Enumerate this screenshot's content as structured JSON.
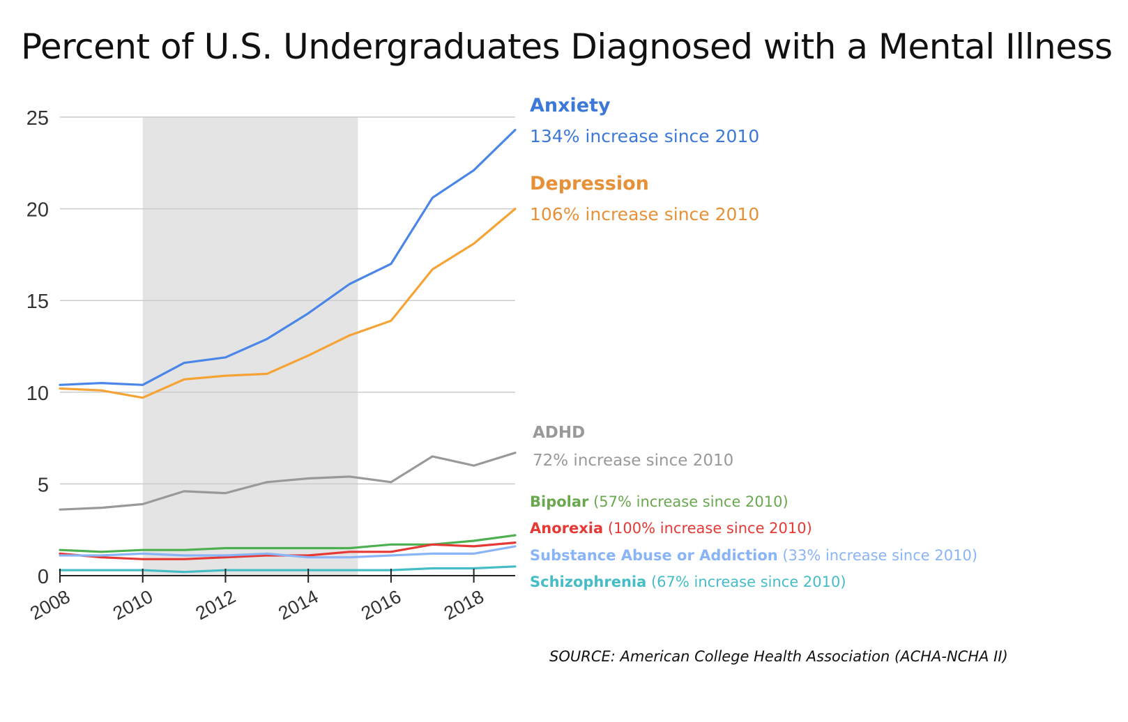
{
  "chart_data": {
    "type": "line",
    "title": "Percent of U.S. Undergraduates Diagnosed with a Mental Illness",
    "xlabel": "",
    "ylabel": "",
    "xlim": [
      2008,
      2019
    ],
    "ylim": [
      0,
      25
    ],
    "yticks": [
      0,
      5,
      10,
      15,
      20,
      25
    ],
    "xticks": [
      2008,
      2010,
      2012,
      2014,
      2016,
      2018
    ],
    "shaded_range": [
      2010,
      2015.2
    ],
    "grid": true,
    "x": [
      2008,
      2009,
      2010,
      2011,
      2012,
      2013,
      2014,
      2015,
      2016,
      2017,
      2018,
      2019
    ],
    "series": [
      {
        "name": "Anxiety",
        "color": "#4a86e8",
        "label_color": "#3c78d8",
        "note": "134% increase since 2010",
        "values": [
          10.4,
          10.5,
          10.4,
          11.6,
          11.9,
          12.9,
          14.3,
          15.9,
          17.0,
          20.6,
          22.1,
          24.3
        ]
      },
      {
        "name": "Depression",
        "color": "#f6a336",
        "label_color": "#e69138",
        "note": "106% increase since 2010",
        "values": [
          10.2,
          10.1,
          9.7,
          10.7,
          10.9,
          11.0,
          12.0,
          13.1,
          13.9,
          16.7,
          18.1,
          20.0
        ]
      },
      {
        "name": "ADHD",
        "color": "#999999",
        "label_color": "#999999",
        "note": "72% increase since 2010",
        "values": [
          3.6,
          3.7,
          3.9,
          4.6,
          4.5,
          5.1,
          5.3,
          5.4,
          5.1,
          6.5,
          6.0,
          6.7
        ]
      },
      {
        "name": "Bipolar",
        "color": "#4caf50",
        "label_color": "#6aa84f",
        "note": "(57% increase since 2010)",
        "values": [
          1.4,
          1.3,
          1.4,
          1.4,
          1.5,
          1.5,
          1.5,
          1.5,
          1.7,
          1.7,
          1.9,
          2.2
        ]
      },
      {
        "name": "Anorexia",
        "color": "#e53935",
        "label_color": "#e53935",
        "note": "(100% increase since 2010)",
        "values": [
          1.2,
          1.0,
          0.9,
          0.9,
          1.0,
          1.1,
          1.1,
          1.3,
          1.3,
          1.7,
          1.6,
          1.8
        ]
      },
      {
        "name": "Substance Abuse or Addiction",
        "color": "#8ab4f8",
        "label_color": "#8ab4f8",
        "note": "(33% increase since 2010)",
        "values": [
          1.1,
          1.1,
          1.2,
          1.1,
          1.1,
          1.2,
          1.0,
          1.0,
          1.1,
          1.2,
          1.2,
          1.6
        ]
      },
      {
        "name": "Schizophrenia",
        "color": "#46bdc6",
        "label_color": "#46bdc6",
        "note": "(67% increase since 2010)",
        "values": [
          0.3,
          0.3,
          0.3,
          0.2,
          0.3,
          0.3,
          0.3,
          0.3,
          0.3,
          0.4,
          0.4,
          0.5
        ]
      }
    ]
  },
  "source": "SOURCE: American College Health Association (ACHA-NCHA II)"
}
